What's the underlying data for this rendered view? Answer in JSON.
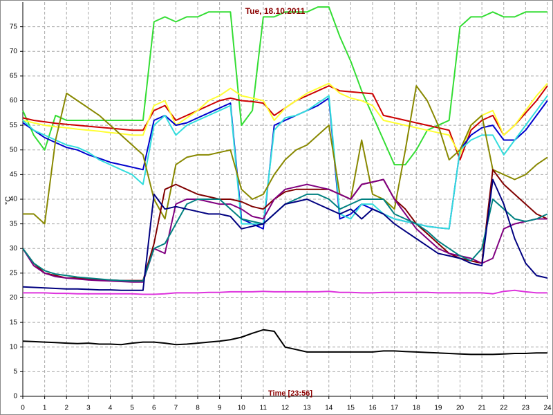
{
  "chart_data": {
    "type": "line",
    "title": "Tue, 18.10.2011",
    "x_label": "Time [23:56]",
    "y_label": "°C",
    "xlim": [
      0,
      24
    ],
    "ylim": [
      0,
      80
    ],
    "xticks": [
      0,
      1,
      2,
      3,
      4,
      5,
      6,
      7,
      8,
      9,
      10,
      11,
      12,
      13,
      14,
      15,
      16,
      17,
      18,
      19,
      20,
      21,
      22,
      23,
      24
    ],
    "yticks": [
      0,
      5,
      10,
      15,
      20,
      25,
      30,
      35,
      40,
      45,
      50,
      55,
      60,
      65,
      70,
      75
    ],
    "grid": true,
    "x": [
      0,
      0.5,
      1,
      1.5,
      2,
      2.5,
      3,
      3.5,
      4,
      4.5,
      5,
      5.5,
      6,
      6.5,
      7,
      7.5,
      8,
      8.5,
      9,
      9.5,
      10,
      10.5,
      11,
      11.5,
      12,
      12.5,
      13,
      13.5,
      14,
      14.5,
      15,
      15.5,
      16,
      16.5,
      17,
      17.5,
      18,
      18.5,
      19,
      19.5,
      20,
      20.5,
      21,
      21.5,
      22,
      22.5,
      23,
      23.5,
      24
    ],
    "series": [
      {
        "color": "#33dd33",
        "values": [
          58,
          53,
          50,
          57,
          56,
          56,
          56,
          56,
          56,
          56,
          56,
          56,
          76,
          77,
          76,
          77,
          77,
          78,
          78,
          78,
          55,
          58,
          77,
          77,
          78,
          78,
          78,
          79,
          79,
          73,
          68,
          62,
          57,
          52,
          47,
          47,
          50,
          54,
          55,
          56,
          75,
          77,
          77,
          78,
          77,
          77,
          78,
          78,
          78
        ]
      },
      {
        "color": "#cc0000",
        "values": [
          56.5,
          56,
          55.7,
          55.4,
          55.2,
          55,
          54.8,
          54.6,
          54.4,
          54.2,
          54,
          54,
          58,
          59,
          56,
          57,
          58,
          59,
          60,
          60.5,
          60,
          59.8,
          59.5,
          57,
          58.5,
          60,
          61,
          62,
          63,
          62,
          61.8,
          61.6,
          61.4,
          57,
          56.5,
          56,
          55.5,
          55,
          54.5,
          54,
          48,
          54,
          56,
          57,
          53,
          55,
          57.5,
          60,
          63
        ]
      },
      {
        "color": "#ffff33",
        "values": [
          56,
          55.5,
          55,
          54.7,
          54.5,
          54.2,
          54,
          53.8,
          53.5,
          53.3,
          53,
          53,
          59,
          60,
          55,
          56.5,
          58,
          60,
          61,
          62.5,
          61,
          60.5,
          60,
          56,
          58.5,
          60,
          61.5,
          62.5,
          63.5,
          61.5,
          60.5,
          60,
          59,
          56,
          55.5,
          55,
          54.5,
          54,
          53.5,
          53,
          49,
          55,
          57,
          58,
          53,
          55,
          58,
          61,
          63.5
        ]
      },
      {
        "color": "#0000cc",
        "values": [
          55.5,
          54,
          52.5,
          51.5,
          50.5,
          50,
          49,
          48.3,
          47.5,
          47,
          46.5,
          46,
          56,
          57,
          55,
          55.5,
          56.5,
          57.5,
          58.5,
          59.5,
          36,
          35,
          34,
          55,
          56,
          57,
          58,
          59,
          60.5,
          36,
          37,
          39,
          38,
          37,
          36,
          35.5,
          35,
          34.5,
          34.2,
          34,
          50,
          53,
          54.5,
          55,
          52,
          52,
          54,
          57,
          60
        ]
      },
      {
        "color": "#33dddd",
        "values": [
          56,
          54,
          53,
          52,
          51,
          50.5,
          49.5,
          48,
          47,
          46,
          45,
          43,
          55,
          57,
          53,
          55,
          56,
          57,
          58,
          59,
          35,
          35,
          35,
          54,
          56.5,
          57,
          58,
          59.5,
          61,
          37,
          36,
          39,
          39,
          37,
          36,
          35.5,
          35,
          34.5,
          34.2,
          34,
          50,
          52,
          53,
          53,
          49,
          52,
          55,
          58,
          61
        ]
      },
      {
        "color": "#888800",
        "values": [
          37,
          37,
          35,
          52,
          61.5,
          60,
          58.5,
          57,
          55,
          53,
          51,
          49,
          40,
          36,
          47,
          48.5,
          49,
          49,
          49.5,
          50,
          42,
          40,
          41,
          45,
          48,
          50,
          51,
          53,
          55,
          41,
          40,
          52,
          41,
          40,
          38,
          50,
          63,
          60,
          55,
          48,
          50,
          55,
          57,
          46,
          45,
          44,
          45,
          47,
          48.5
        ]
      },
      {
        "color": "#800000",
        "values": [
          30,
          27,
          25,
          24.5,
          24,
          24,
          23.8,
          23.7,
          23.6,
          23.5,
          23.5,
          23.5,
          31,
          42,
          43,
          42,
          41,
          40.5,
          40,
          40,
          39.5,
          38.5,
          38,
          40,
          41.5,
          42,
          42,
          42,
          42,
          41,
          40,
          43,
          43.5,
          44,
          40,
          38,
          35,
          33,
          31,
          29,
          28,
          27.5,
          27,
          46,
          43,
          41,
          39,
          37,
          36
        ]
      },
      {
        "color": "#800080",
        "values": [
          30,
          26.5,
          25,
          24.3,
          24,
          23.8,
          23.6,
          23.5,
          23.4,
          23.3,
          23.2,
          23.2,
          30,
          29,
          39,
          40,
          40,
          39.5,
          39,
          39,
          38,
          36.5,
          36,
          40,
          42,
          42.5,
          43,
          42.5,
          42,
          41,
          40,
          43,
          43.5,
          44,
          40,
          37,
          34,
          32,
          30,
          29,
          28.5,
          28,
          27,
          28,
          34,
          35,
          35.5,
          36,
          36
        ]
      },
      {
        "color": "#008080",
        "values": [
          30,
          27,
          25.5,
          24.8,
          24.5,
          24.2,
          24,
          23.8,
          23.6,
          23.5,
          23.4,
          23.4,
          30,
          31,
          35,
          39,
          40,
          40,
          40,
          38,
          36,
          35.5,
          35,
          37,
          39,
          40,
          41,
          41,
          40,
          38,
          39,
          40,
          40,
          40,
          37,
          36,
          35,
          33.5,
          31.5,
          30,
          28.5,
          27.5,
          30,
          40,
          38,
          36,
          35.5,
          36,
          37
        ]
      },
      {
        "color": "#000080",
        "values": [
          22.2,
          22.1,
          22,
          21.9,
          21.8,
          21.8,
          21.7,
          21.6,
          21.6,
          21.5,
          21.5,
          21.5,
          41,
          38,
          38.5,
          38,
          37.5,
          37,
          37,
          36.5,
          34,
          34.5,
          35,
          37,
          39,
          39.5,
          40,
          39,
          38,
          37,
          38,
          36,
          38,
          37,
          35,
          33.5,
          32,
          30.5,
          29,
          28.5,
          28,
          27,
          26.5,
          44,
          39,
          32,
          27,
          24.5,
          24
        ]
      },
      {
        "color": "#dd33dd",
        "values": [
          21,
          21,
          21,
          20.9,
          20.9,
          20.8,
          20.8,
          20.8,
          20.8,
          20.8,
          20.8,
          20.7,
          20.7,
          20.8,
          21,
          21,
          21,
          21.1,
          21.1,
          21.2,
          21.2,
          21.2,
          21.3,
          21.2,
          21.2,
          21.2,
          21.2,
          21.2,
          21.3,
          21.1,
          21.1,
          21,
          21,
          21.1,
          21.1,
          21.1,
          21.1,
          21.1,
          21,
          21,
          21,
          21,
          21,
          20.8,
          21.3,
          21.5,
          21.2,
          21,
          21
        ]
      },
      {
        "color": "#000000",
        "values": [
          11.2,
          11.1,
          11,
          10.9,
          10.8,
          10.7,
          10.8,
          10.6,
          10.6,
          10.5,
          10.8,
          11,
          11,
          10.8,
          10.5,
          10.6,
          10.8,
          11,
          11.2,
          11.5,
          12,
          12.8,
          13.5,
          13.2,
          10,
          9.5,
          9,
          9,
          9,
          9,
          9,
          9,
          9,
          9.2,
          9.2,
          9.1,
          9,
          8.9,
          8.8,
          8.7,
          8.6,
          8.5,
          8.5,
          8.5,
          8.6,
          8.7,
          8.7,
          8.8,
          8.8
        ]
      }
    ]
  }
}
